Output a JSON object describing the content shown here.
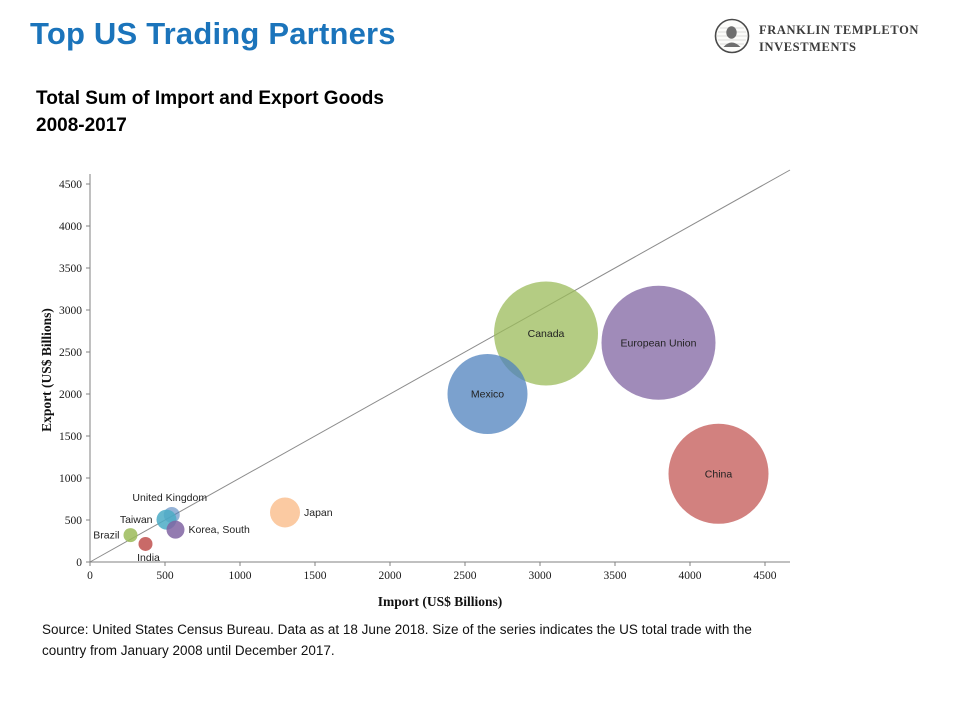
{
  "slide": {
    "title": "Top US Trading Partners",
    "title_color": "#1B74BB",
    "subtitle_line1": "Total Sum of Import and Export Goods",
    "subtitle_line2": "2008-2017",
    "source_text": "Source: United States Census Bureau. Data as at 18 June 2018. Size of the series indicates the US total trade with the country from January 2008 until December 2017."
  },
  "logo": {
    "line1": "FRANKLIN TEMPLETON",
    "line2": "INVESTMENTS"
  },
  "chart_data": {
    "type": "scatter",
    "title": "",
    "xlabel": "Import (US$ Billions)",
    "ylabel": "Export (US$ Billions)",
    "xlim": [
      0,
      4700
    ],
    "ylim": [
      0,
      4700
    ],
    "xticks": [
      0,
      500,
      1000,
      1500,
      2000,
      2500,
      3000,
      3500,
      4000,
      4500
    ],
    "yticks": [
      0,
      500,
      1000,
      1500,
      2000,
      2500,
      3000,
      3500,
      4000,
      4500
    ],
    "grid": false,
    "diagonal_parity_line": true,
    "legend": "none",
    "size_meaning": "bubble size = US total trade with country, Jan 2008 - Dec 2017",
    "points": [
      {
        "label": "European Union",
        "import": 3790,
        "export": 2610,
        "radius_px": 57,
        "color": "#8064A2",
        "opacity": 0.75,
        "label_pos": "center"
      },
      {
        "label": "Canada",
        "import": 3040,
        "export": 2720,
        "radius_px": 52,
        "color": "#9BBB59",
        "opacity": 0.75,
        "label_pos": "center"
      },
      {
        "label": "Mexico",
        "import": 2650,
        "export": 2000,
        "radius_px": 40,
        "color": "#4F81BD",
        "opacity": 0.75,
        "label_pos": "center"
      },
      {
        "label": "China",
        "import": 4190,
        "export": 1050,
        "radius_px": 50,
        "color": "#C0504D",
        "opacity": 0.72,
        "label_pos": "center"
      },
      {
        "label": "Japan",
        "import": 1300,
        "export": 590,
        "radius_px": 15,
        "color": "#F79646",
        "opacity": 0.5,
        "label_pos": "right"
      },
      {
        "label": "United Kingdom",
        "import": 545,
        "export": 560,
        "radius_px": 8,
        "color": "#4F81BD",
        "opacity": 0.6,
        "label_pos": "above"
      },
      {
        "label": "Taiwan",
        "import": 510,
        "export": 505,
        "radius_px": 10,
        "color": "#4BACC6",
        "opacity": 0.85,
        "label_pos": "left"
      },
      {
        "label": "Korea, South",
        "import": 570,
        "export": 385,
        "radius_px": 9,
        "color": "#8064A2",
        "opacity": 0.85,
        "label_pos": "right"
      },
      {
        "label": "Brazil",
        "import": 270,
        "export": 320,
        "radius_px": 7,
        "color": "#9BBB59",
        "opacity": 0.85,
        "label_pos": "left"
      },
      {
        "label": "India",
        "import": 370,
        "export": 215,
        "radius_px": 7,
        "color": "#C0504D",
        "opacity": 0.85,
        "label_pos": "below"
      }
    ]
  }
}
